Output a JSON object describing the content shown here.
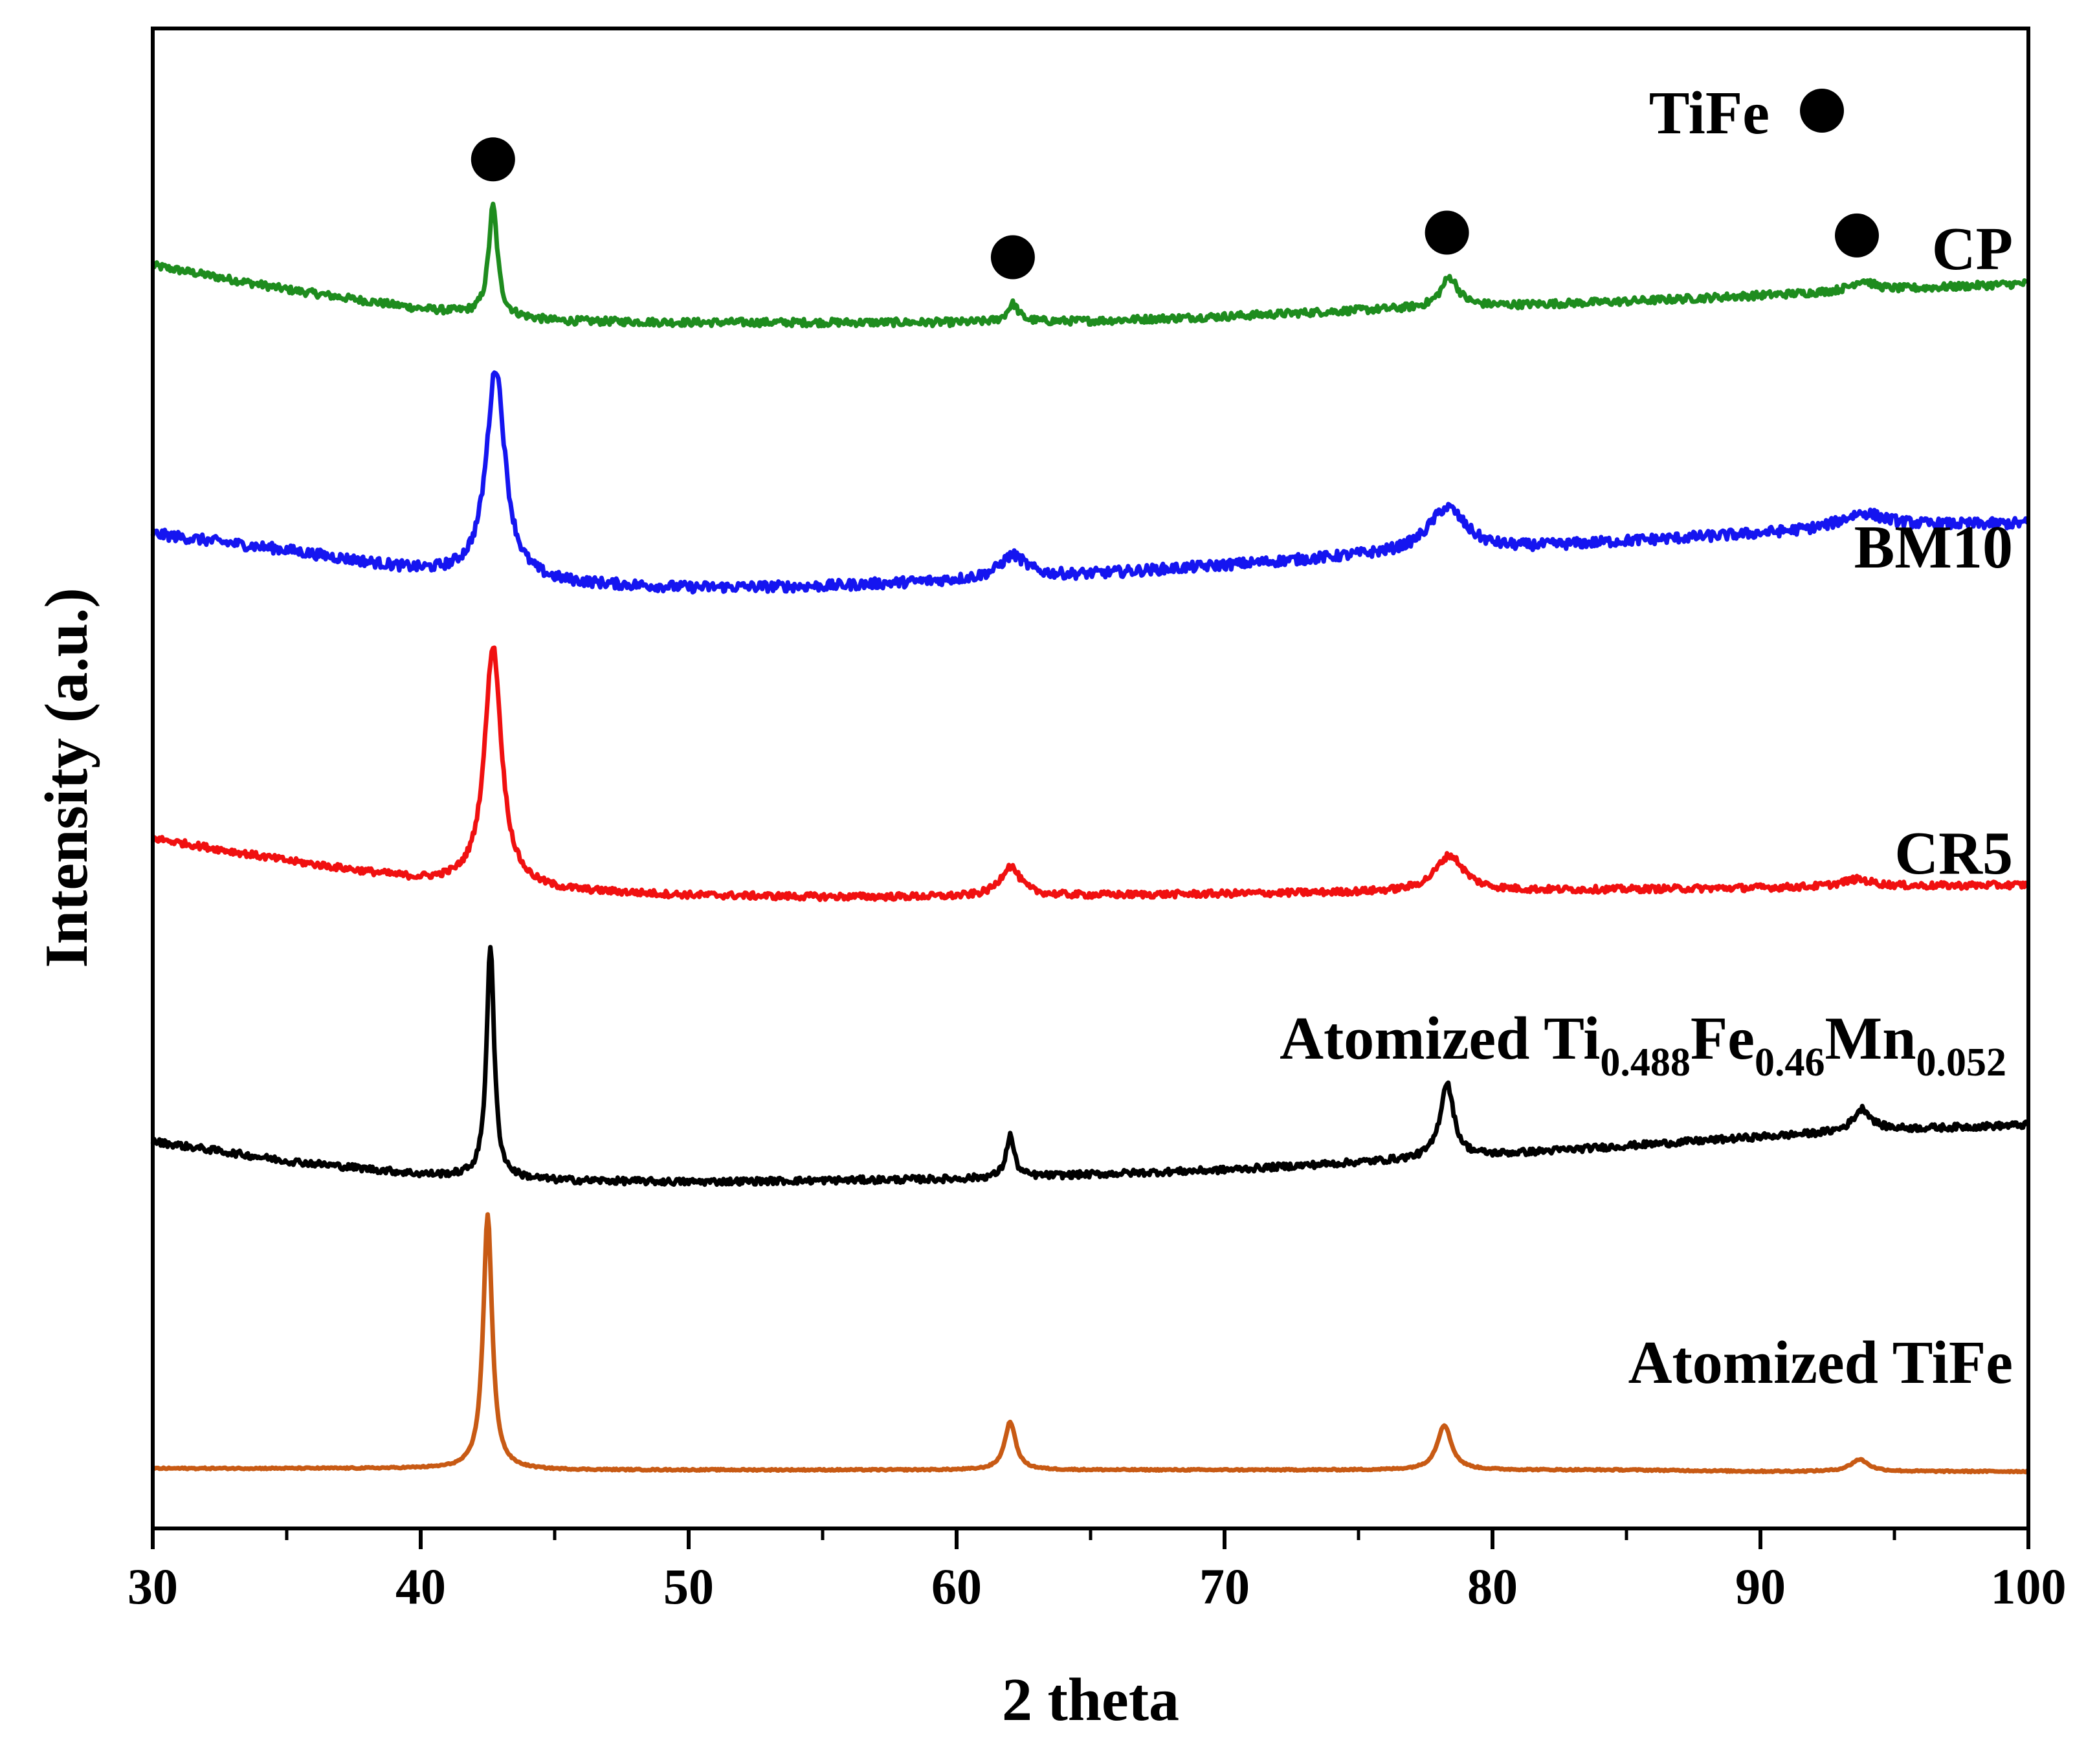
{
  "chart_data": {
    "type": "line",
    "title": "",
    "xlabel": "2 theta",
    "ylabel": "Intensity (a.u.)",
    "xlim": [
      30,
      100
    ],
    "x_ticks": [
      30,
      40,
      50,
      60,
      70,
      80,
      90,
      100
    ],
    "x_tick_labels": [
      "30",
      "40",
      "50",
      "60",
      "70",
      "80",
      "90",
      "100"
    ],
    "ylim": [
      0,
      1
    ],
    "y_ticks_shown": false,
    "legend": {
      "label": "TiFe",
      "marker": "filled-circle",
      "placement": "top-right",
      "color": "#000000"
    },
    "tife_peak_markers": [
      {
        "series": "CP",
        "x": 42.7
      },
      {
        "series": "CP",
        "x": 62.1
      },
      {
        "series": "CP",
        "x": 78.3
      },
      {
        "series": "CP",
        "x": 93.6
      }
    ],
    "series": [
      {
        "name": "CP",
        "label": "CP",
        "color": "#1e8c1e",
        "baseline": [
          [
            30,
            0.842
          ],
          [
            35,
            0.826
          ],
          [
            40,
            0.813
          ],
          [
            45,
            0.805
          ],
          [
            50,
            0.804
          ],
          [
            55,
            0.804
          ],
          [
            60,
            0.804
          ],
          [
            65,
            0.805
          ],
          [
            70,
            0.808
          ],
          [
            75,
            0.812
          ],
          [
            80,
            0.815
          ],
          [
            85,
            0.818
          ],
          [
            90,
            0.822
          ],
          [
            95,
            0.826
          ],
          [
            100,
            0.83
          ]
        ],
        "peaks": [
          {
            "x": 42.7,
            "height": 0.073,
            "width": 0.2
          },
          {
            "x": 62.1,
            "height": 0.012,
            "width": 0.25
          },
          {
            "x": 78.4,
            "height": 0.02,
            "width": 0.4
          },
          {
            "x": 93.8,
            "height": 0.007,
            "width": 0.5
          }
        ],
        "noise": 0.0025
      },
      {
        "name": "BM10",
        "label": "BM10",
        "color": "#1515f0",
        "baseline": [
          [
            30,
            0.663
          ],
          [
            35,
            0.652
          ],
          [
            40,
            0.638
          ],
          [
            45,
            0.63
          ],
          [
            50,
            0.627
          ],
          [
            55,
            0.628
          ],
          [
            60,
            0.632
          ],
          [
            65,
            0.636
          ],
          [
            70,
            0.642
          ],
          [
            75,
            0.648
          ],
          [
            80,
            0.652
          ],
          [
            85,
            0.658
          ],
          [
            90,
            0.663
          ],
          [
            95,
            0.668
          ],
          [
            100,
            0.67
          ]
        ],
        "peaks": [
          {
            "x": 42.8,
            "height": 0.14,
            "width": 0.42
          },
          {
            "x": 62.1,
            "height": 0.015,
            "width": 0.6
          },
          {
            "x": 78.3,
            "height": 0.03,
            "width": 0.85
          },
          {
            "x": 93.8,
            "height": 0.01,
            "width": 1.0
          }
        ],
        "noise": 0.0035
      },
      {
        "name": "CR5",
        "label": "CR5",
        "color": "#f01010",
        "baseline": [
          [
            30,
            0.46
          ],
          [
            35,
            0.445
          ],
          [
            40,
            0.432
          ],
          [
            45,
            0.425
          ],
          [
            50,
            0.422
          ],
          [
            55,
            0.421
          ],
          [
            60,
            0.421
          ],
          [
            65,
            0.422
          ],
          [
            70,
            0.423
          ],
          [
            75,
            0.424
          ],
          [
            80,
            0.425
          ],
          [
            85,
            0.426
          ],
          [
            90,
            0.427
          ],
          [
            95,
            0.428
          ],
          [
            100,
            0.429
          ]
        ],
        "peaks": [
          {
            "x": 42.7,
            "height": 0.16,
            "width": 0.38
          },
          {
            "x": 62.0,
            "height": 0.02,
            "width": 0.45
          },
          {
            "x": 78.4,
            "height": 0.024,
            "width": 0.65
          },
          {
            "x": 93.6,
            "height": 0.005,
            "width": 0.7
          }
        ],
        "noise": 0.0022
      },
      {
        "name": "Atomized Ti0.488Fe0.46Mn0.052",
        "label": "Atomized Ti0.488Fe0.46Mn0.052",
        "color": "#000000",
        "baseline": [
          [
            30,
            0.258
          ],
          [
            35,
            0.245
          ],
          [
            40,
            0.236
          ],
          [
            45,
            0.232
          ],
          [
            50,
            0.231
          ],
          [
            55,
            0.232
          ],
          [
            60,
            0.233
          ],
          [
            65,
            0.236
          ],
          [
            70,
            0.239
          ],
          [
            75,
            0.244
          ],
          [
            80,
            0.249
          ],
          [
            85,
            0.255
          ],
          [
            90,
            0.261
          ],
          [
            95,
            0.266
          ],
          [
            100,
            0.269
          ]
        ],
        "peaks": [
          {
            "x": 42.6,
            "height": 0.155,
            "width": 0.17
          },
          {
            "x": 62.0,
            "height": 0.028,
            "width": 0.18
          },
          {
            "x": 78.3,
            "height": 0.05,
            "width": 0.3
          },
          {
            "x": 93.8,
            "height": 0.015,
            "width": 0.4
          }
        ],
        "noise": 0.0022
      },
      {
        "name": "Atomized TiFe",
        "label": "Atomized TiFe",
        "color": "#c85a14",
        "baseline": [
          [
            30,
            0.04
          ],
          [
            35,
            0.04
          ],
          [
            40,
            0.04
          ],
          [
            45,
            0.039
          ],
          [
            50,
            0.039
          ],
          [
            55,
            0.039
          ],
          [
            60,
            0.039
          ],
          [
            65,
            0.039
          ],
          [
            70,
            0.039
          ],
          [
            75,
            0.039
          ],
          [
            80,
            0.039
          ],
          [
            85,
            0.039
          ],
          [
            90,
            0.038
          ],
          [
            95,
            0.038
          ],
          [
            100,
            0.038
          ]
        ],
        "peaks": [
          {
            "x": 42.5,
            "height": 0.17,
            "width": 0.2
          },
          {
            "x": 62.0,
            "height": 0.032,
            "width": 0.25
          },
          {
            "x": 78.2,
            "height": 0.03,
            "width": 0.32
          },
          {
            "x": 93.7,
            "height": 0.008,
            "width": 0.4
          }
        ],
        "noise": 0.0005
      }
    ],
    "series_labels": {
      "CP": "CP",
      "BM10": "BM10",
      "CR5": "CR5",
      "mn_prefix": "Atomized Ti",
      "mn_sub1": "0.488",
      "mn_el2": "Fe",
      "mn_sub2": "0.46",
      "mn_el3": "Mn",
      "mn_sub3": "0.052",
      "tife": "Atomized TiFe"
    }
  }
}
